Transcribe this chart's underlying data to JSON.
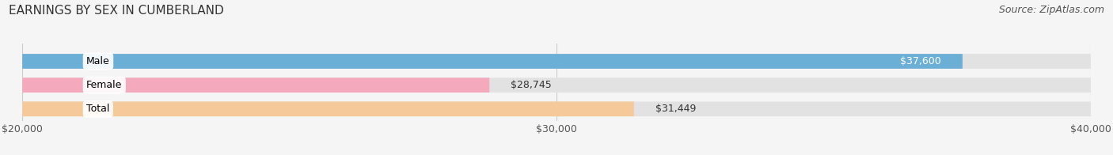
{
  "title": "EARNINGS BY SEX IN CUMBERLAND",
  "source": "Source: ZipAtlas.com",
  "categories": [
    "Male",
    "Female",
    "Total"
  ],
  "values": [
    37600,
    28745,
    31449
  ],
  "bar_colors": [
    "#6baed6",
    "#f4a9bc",
    "#f5c99a"
  ],
  "label_inside": [
    true,
    false,
    false
  ],
  "xmin": 20000,
  "xmax": 40000,
  "xticks": [
    20000,
    30000,
    40000
  ],
  "xtick_labels": [
    "$20,000",
    "$30,000",
    "$40,000"
  ],
  "value_labels": [
    "$37,600",
    "$28,745",
    "$31,449"
  ],
  "bg_color": "#f0f0f0",
  "bar_bg_color": "#e2e2e2",
  "title_fontsize": 11,
  "source_fontsize": 9,
  "tick_fontsize": 9,
  "bar_label_fontsize": 9
}
